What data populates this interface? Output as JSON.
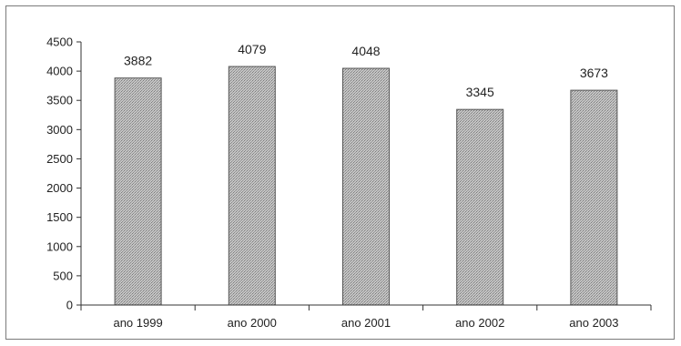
{
  "chart_data": {
    "type": "bar",
    "categories": [
      "ano 1999",
      "ano 2000",
      "ano 2001",
      "ano 2002",
      "ano 2003"
    ],
    "values": [
      3882,
      4079,
      4048,
      3345,
      3673
    ],
    "data_labels": [
      "3882",
      "4079",
      "4048",
      "3345",
      "3673"
    ],
    "title": "",
    "xlabel": "",
    "ylabel": "",
    "ylim": [
      0,
      4500
    ],
    "yticks": [
      0,
      500,
      1000,
      1500,
      2000,
      2500,
      3000,
      3500,
      4000,
      4500
    ],
    "ytick_labels": [
      "0",
      "500",
      "1000",
      "1500",
      "2000",
      "2500",
      "3000",
      "3500",
      "4000",
      "4500"
    ],
    "grid": false,
    "legend": "none",
    "bar_pattern": "stippled gray",
    "colors": {
      "bar_fill": "#c4c4c4",
      "bar_dot": "#7d7d7d",
      "bar_stroke": "#555555",
      "axis": "#333333",
      "frame": "#7a7a7a"
    }
  }
}
